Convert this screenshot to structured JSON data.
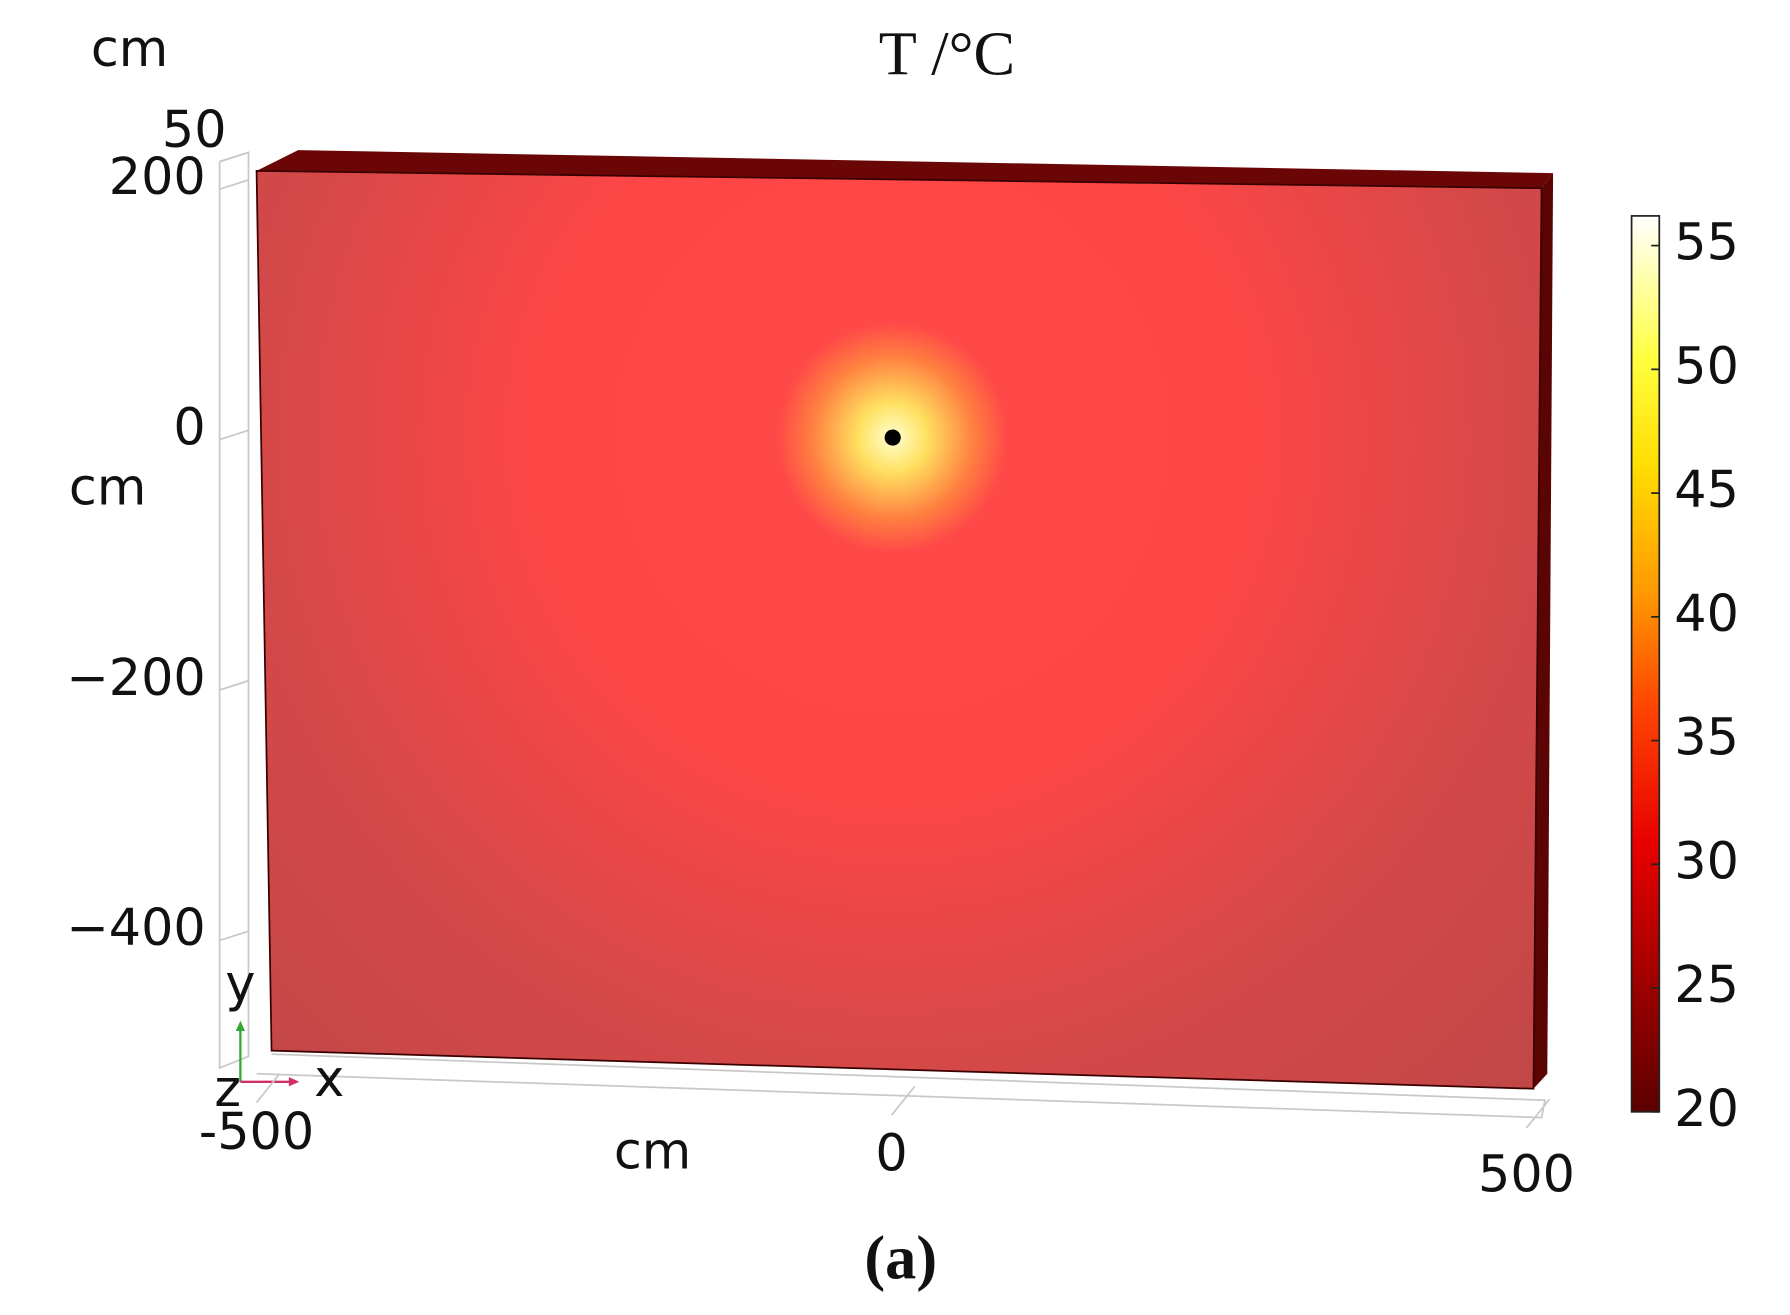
{
  "chart_data": {
    "type": "surface3d",
    "title": "T /°C",
    "caption": "(a)",
    "x_unit": "cm",
    "y_unit": "cm",
    "z_unit": "cm",
    "triad": [
      "x",
      "y",
      "z"
    ],
    "xlim": [
      -500,
      500
    ],
    "xticks": [
      -500,
      0,
      500
    ],
    "ylim": [
      -500,
      210
    ],
    "yticks": [
      200,
      0,
      {
        "value": -200,
        "label": "−200"
      },
      {
        "value": -400,
        "label": "−400"
      }
    ],
    "zticks": [
      50
    ],
    "colorbar": {
      "lim": [
        20,
        56.2
      ],
      "ticks": [
        20,
        25,
        30,
        35,
        40,
        45,
        50,
        55
      ]
    }
  }
}
